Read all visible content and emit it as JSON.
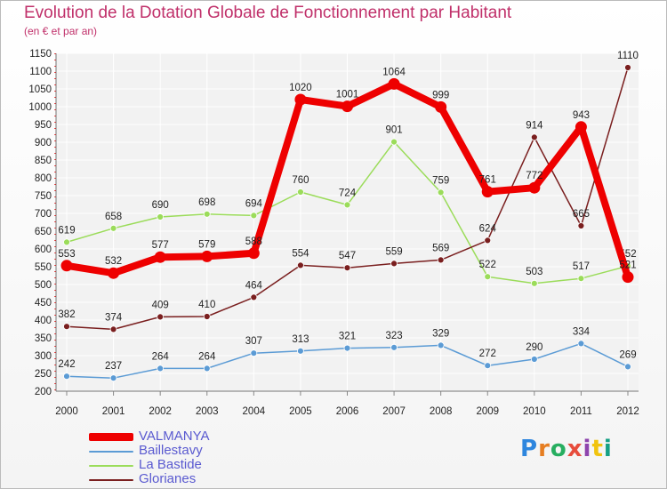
{
  "chart_data": {
    "type": "line",
    "title": "Evolution de la Dotation Globale de Fonctionnement par Habitant",
    "subtitle": "(en € et par an)",
    "xlabel": "",
    "ylabel": "",
    "categories": [
      "2000",
      "2001",
      "2002",
      "2003",
      "2004",
      "2005",
      "2006",
      "2007",
      "2008",
      "2009",
      "2010",
      "2011",
      "2012"
    ],
    "ylim": [
      200,
      1150
    ],
    "yticks": [
      200,
      250,
      300,
      350,
      400,
      450,
      500,
      550,
      600,
      650,
      700,
      750,
      800,
      850,
      900,
      950,
      1000,
      1050,
      1100,
      1150
    ],
    "grid": true,
    "legend_position": "bottom-left",
    "series": [
      {
        "name": "Baillestavy",
        "color": "#5b9bd5",
        "values": [
          242,
          237,
          264,
          264,
          307,
          313,
          321,
          323,
          329,
          272,
          290,
          334,
          269
        ]
      },
      {
        "name": "La Bastide",
        "color": "#9bdc5a",
        "values": [
          619,
          658,
          690,
          698,
          694,
          760,
          724,
          901,
          759,
          522,
          503,
          517,
          552
        ]
      },
      {
        "name": "Glorianes",
        "color": "#7a1f1f",
        "values": [
          382,
          374,
          409,
          410,
          464,
          554,
          547,
          559,
          569,
          624,
          914,
          665,
          1110
        ]
      },
      {
        "name": "VALMANYA",
        "color": "#ee0000",
        "values": [
          553,
          532,
          577,
          579,
          588,
          1020,
          1001,
          1064,
          999,
          761,
          772,
          943,
          521
        ]
      }
    ]
  },
  "legend": {
    "items": [
      {
        "label": "VALMANYA",
        "color": "#ee0000"
      },
      {
        "label": "Baillestavy",
        "color": "#5b9bd5"
      },
      {
        "label": "La Bastide",
        "color": "#9bdc5a"
      },
      {
        "label": "Glorianes",
        "color": "#7a1f1f"
      }
    ]
  },
  "logo": {
    "letters": [
      "P",
      "r",
      "o",
      "x",
      "i",
      "t",
      "i"
    ],
    "colors": [
      "#2e86de",
      "#e67e22",
      "#27ae60",
      "#e74c3c",
      "#8e44ad",
      "#f1c40f",
      "#16a085"
    ]
  }
}
